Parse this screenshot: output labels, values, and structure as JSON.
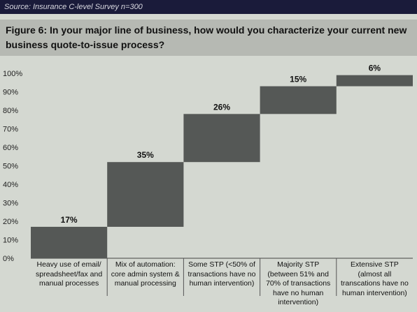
{
  "source": "Source: Insurance C-level Survey n=300",
  "title": "Figure 6: In your major line of business, how would you characterize your current new business quote-to-issue process?",
  "chart_data": {
    "type": "bar",
    "subtype": "waterfall",
    "categories": [
      "Heavy use of email/\nspreadsheet/fax and\nmanual processes",
      "Mix of automation:\ncore admin system &\nmanual processing",
      "Some STP (<50% of\ntransactions have no\nhuman intervention)",
      "Majority STP\n(between 51% and\n70% of transactions\nhave no human\nintervention)",
      "Extensive STP\n(almost all\ntranscations have no\nhuman intervention)"
    ],
    "values": [
      17,
      35,
      26,
      15,
      6
    ],
    "data_labels": [
      "17%",
      "35%",
      "26%",
      "15%",
      "6%"
    ],
    "yticks": [
      "0%",
      "10%",
      "20%",
      "30%",
      "40%",
      "50%",
      "60%",
      "70%",
      "80%",
      "90%",
      "100%"
    ],
    "ylim": [
      0,
      100
    ],
    "bar_color": "#555856",
    "grid": false
  }
}
